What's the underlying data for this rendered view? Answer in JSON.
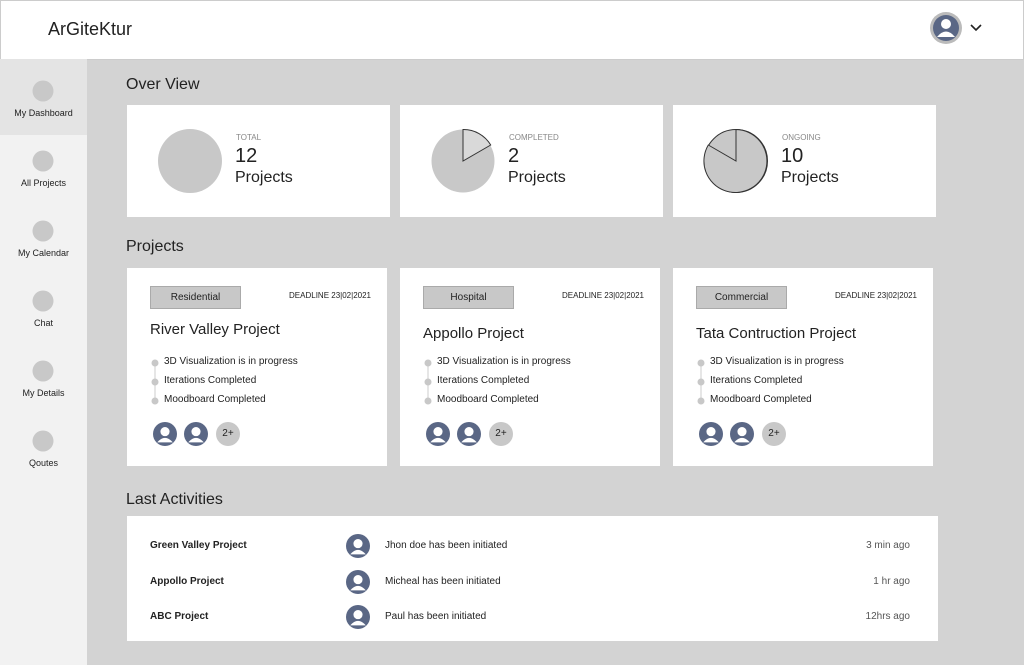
{
  "header": {
    "brand": "ArGiteKtur"
  },
  "sidebar": {
    "items": [
      "My Dashboard",
      "All Projects",
      "My Calendar",
      "Chat",
      "My Details",
      "Qoutes"
    ]
  },
  "overview": {
    "title": "Over View",
    "cards": [
      {
        "label": "TOTAL",
        "count": 12,
        "unit": "Projects"
      },
      {
        "label": "COMPLETED",
        "count": 2,
        "unit": "Projects"
      },
      {
        "label": "ONGOING",
        "count": 10,
        "unit": "Projects"
      }
    ]
  },
  "projects": {
    "title": "Projects",
    "cards": [
      {
        "tag": "Residential",
        "deadline": "DEADLINE 23|02|2021",
        "name": "River Valley Project",
        "steps": [
          "3D Visualization is in progress",
          "Iterations Completed",
          "Moodboard Completed"
        ],
        "more": "2+"
      },
      {
        "tag": "Hospital",
        "deadline": "DEADLINE 23|02|2021",
        "name": "Appollo Project",
        "steps": [
          "3D Visualization is in progress",
          "Iterations Completed",
          "Moodboard Completed"
        ],
        "more": "2+"
      },
      {
        "tag": "Commercial",
        "deadline": "DEADLINE 23|02|2021",
        "name": "Tata Contruction Project",
        "steps": [
          "3D Visualization is in progress",
          "Iterations Completed",
          "Moodboard Completed"
        ],
        "more": "2+"
      }
    ]
  },
  "activities": {
    "title": "Last Activities",
    "rows": [
      {
        "project": "Green Valley Project",
        "text": "Jhon doe has been initiated",
        "time": "3 min ago"
      },
      {
        "project": "Appollo Project",
        "text": "Micheal has been initiated",
        "time": "1 hr ago"
      },
      {
        "project": "ABC Project",
        "text": "Paul  has been initiated",
        "time": "12hrs ago"
      }
    ]
  }
}
